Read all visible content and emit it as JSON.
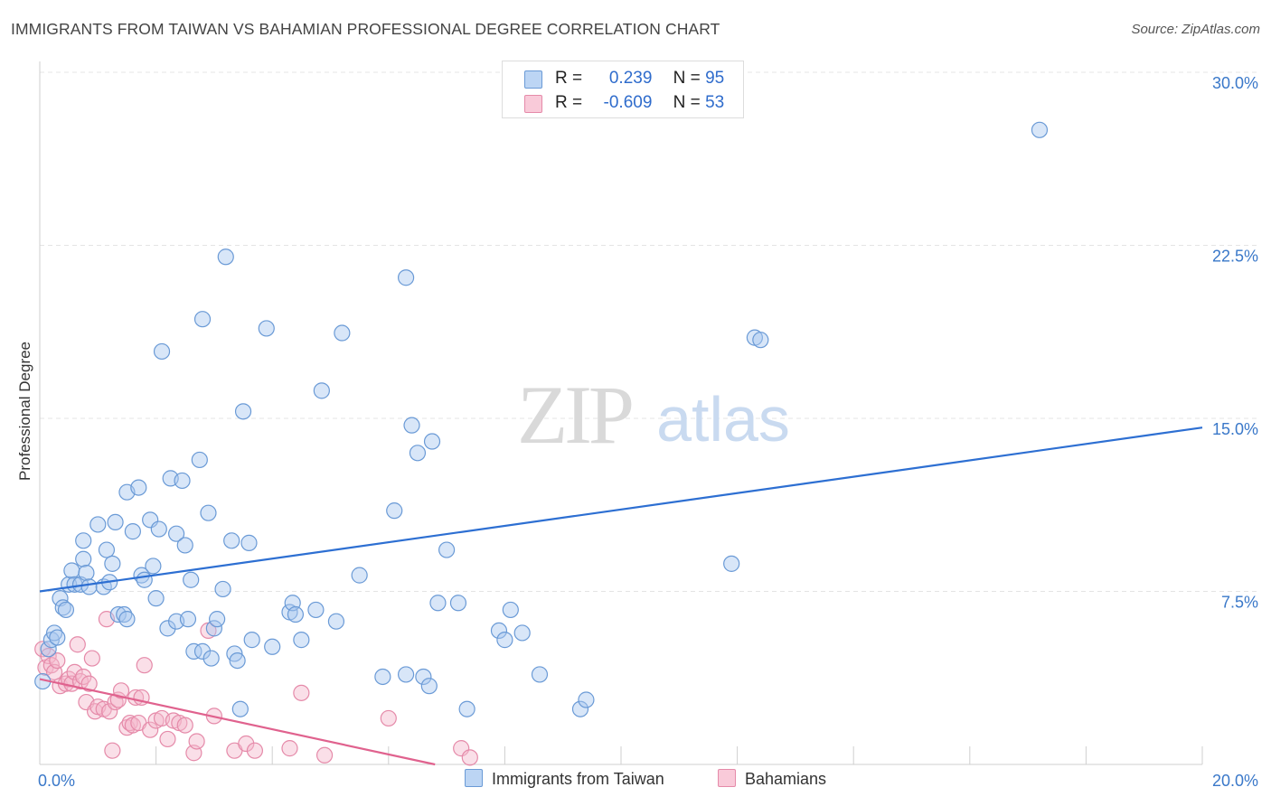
{
  "title": "IMMIGRANTS FROM TAIWAN VS BAHAMIAN PROFESSIONAL DEGREE CORRELATION CHART",
  "source": "Source: ZipAtlas.com",
  "watermark": {
    "zip": "ZIP",
    "atlas": "atlas"
  },
  "colors": {
    "blue_fill": "#a9c8f0",
    "blue_stroke": "#6a9ad6",
    "blue_line": "#2d6fd2",
    "pink_fill": "#f5b8cc",
    "pink_stroke": "#e58aa9",
    "pink_line": "#e0628e",
    "grid": "#e4e4e4",
    "tick_text": "#3a78c9"
  },
  "legend": {
    "row1": {
      "r_label": "R =",
      "r_value": "0.239",
      "n_label": "N =",
      "n_value": "95"
    },
    "row2": {
      "r_label": "R =",
      "r_value": "-0.609",
      "n_label": "N =",
      "n_value": "53"
    }
  },
  "bottom_legend": {
    "series1": "Immigrants from Taiwan",
    "series2": "Bahamians"
  },
  "chart_data": {
    "type": "scatter",
    "xlabel": "",
    "ylabel": "Professional Degree",
    "xlim": [
      0,
      20
    ],
    "ylim": [
      0,
      30
    ],
    "x_ticks": [
      {
        "value": 0,
        "label": "0.0%"
      },
      {
        "value": 20,
        "label": "20.0%"
      }
    ],
    "y_ticks": [
      {
        "value": 7.5,
        "label": "7.5%"
      },
      {
        "value": 15,
        "label": "15.0%"
      },
      {
        "value": 22.5,
        "label": "22.5%"
      },
      {
        "value": 30,
        "label": "30.0%"
      }
    ],
    "grid": true,
    "legend_position": "top-center",
    "series": [
      {
        "name": "Immigrants from Taiwan",
        "trend": {
          "x": [
            0,
            20
          ],
          "y": [
            7.5,
            14.6
          ]
        },
        "points": [
          [
            0.05,
            3.6
          ],
          [
            0.15,
            5.0
          ],
          [
            0.2,
            5.4
          ],
          [
            0.25,
            5.7
          ],
          [
            0.3,
            5.5
          ],
          [
            0.35,
            7.2
          ],
          [
            0.4,
            6.8
          ],
          [
            0.45,
            6.7
          ],
          [
            0.5,
            7.8
          ],
          [
            0.55,
            8.4
          ],
          [
            0.6,
            7.8
          ],
          [
            0.7,
            7.8
          ],
          [
            0.75,
            8.9
          ],
          [
            0.75,
            9.7
          ],
          [
            0.8,
            8.3
          ],
          [
            0.85,
            7.7
          ],
          [
            1.0,
            10.4
          ],
          [
            1.1,
            7.7
          ],
          [
            1.15,
            9.3
          ],
          [
            1.2,
            7.9
          ],
          [
            1.25,
            8.7
          ],
          [
            1.3,
            10.5
          ],
          [
            1.35,
            6.5
          ],
          [
            1.45,
            6.5
          ],
          [
            1.5,
            6.3
          ],
          [
            1.5,
            11.8
          ],
          [
            1.6,
            10.1
          ],
          [
            1.7,
            12.0
          ],
          [
            1.75,
            8.2
          ],
          [
            1.8,
            8.0
          ],
          [
            1.9,
            10.6
          ],
          [
            1.95,
            8.6
          ],
          [
            2.0,
            7.2
          ],
          [
            2.05,
            10.2
          ],
          [
            2.1,
            17.9
          ],
          [
            2.2,
            5.9
          ],
          [
            2.25,
            12.4
          ],
          [
            2.35,
            6.2
          ],
          [
            2.35,
            10.0
          ],
          [
            2.45,
            12.3
          ],
          [
            2.5,
            9.5
          ],
          [
            2.55,
            6.3
          ],
          [
            2.6,
            8.0
          ],
          [
            2.65,
            4.9
          ],
          [
            2.75,
            13.2
          ],
          [
            2.8,
            19.3
          ],
          [
            2.8,
            4.9
          ],
          [
            2.9,
            10.9
          ],
          [
            2.95,
            4.6
          ],
          [
            3.0,
            5.9
          ],
          [
            3.05,
            6.3
          ],
          [
            3.15,
            7.6
          ],
          [
            3.2,
            22.0
          ],
          [
            3.3,
            9.7
          ],
          [
            3.35,
            4.8
          ],
          [
            3.4,
            4.5
          ],
          [
            3.45,
            2.4
          ],
          [
            3.5,
            15.3
          ],
          [
            3.6,
            9.6
          ],
          [
            3.65,
            5.4
          ],
          [
            3.9,
            18.9
          ],
          [
            4.0,
            5.1
          ],
          [
            4.3,
            6.6
          ],
          [
            4.35,
            7.0
          ],
          [
            4.4,
            6.5
          ],
          [
            4.5,
            5.4
          ],
          [
            4.75,
            6.7
          ],
          [
            4.85,
            16.2
          ],
          [
            5.1,
            6.2
          ],
          [
            5.2,
            18.7
          ],
          [
            5.5,
            8.2
          ],
          [
            5.9,
            3.8
          ],
          [
            6.1,
            11.0
          ],
          [
            6.3,
            3.9
          ],
          [
            6.3,
            21.1
          ],
          [
            6.4,
            14.7
          ],
          [
            6.5,
            13.5
          ],
          [
            6.6,
            3.8
          ],
          [
            6.7,
            3.4
          ],
          [
            6.75,
            14.0
          ],
          [
            6.85,
            7.0
          ],
          [
            7.0,
            9.3
          ],
          [
            7.2,
            7.0
          ],
          [
            7.35,
            2.4
          ],
          [
            7.9,
            5.8
          ],
          [
            8.0,
            5.4
          ],
          [
            8.1,
            6.7
          ],
          [
            8.3,
            5.7
          ],
          [
            8.6,
            3.9
          ],
          [
            9.3,
            2.4
          ],
          [
            9.4,
            2.8
          ],
          [
            11.9,
            8.7
          ],
          [
            12.3,
            18.5
          ],
          [
            12.4,
            18.4
          ],
          [
            17.2,
            27.5
          ]
        ]
      },
      {
        "name": "Bahamians",
        "trend": {
          "x": [
            0,
            6.8
          ],
          "y": [
            3.7,
            0
          ]
        },
        "points": [
          [
            0.05,
            5.0
          ],
          [
            0.1,
            4.2
          ],
          [
            0.15,
            4.7
          ],
          [
            0.2,
            4.3
          ],
          [
            0.25,
            4.0
          ],
          [
            0.3,
            4.5
          ],
          [
            0.35,
            3.4
          ],
          [
            0.45,
            3.5
          ],
          [
            0.5,
            3.7
          ],
          [
            0.55,
            3.5
          ],
          [
            0.6,
            4.0
          ],
          [
            0.65,
            5.2
          ],
          [
            0.7,
            3.6
          ],
          [
            0.75,
            3.8
          ],
          [
            0.8,
            2.7
          ],
          [
            0.85,
            3.5
          ],
          [
            0.9,
            4.6
          ],
          [
            0.95,
            2.3
          ],
          [
            1.0,
            2.5
          ],
          [
            1.1,
            2.4
          ],
          [
            1.15,
            6.3
          ],
          [
            1.2,
            2.3
          ],
          [
            1.25,
            0.6
          ],
          [
            1.3,
            2.7
          ],
          [
            1.35,
            2.8
          ],
          [
            1.4,
            3.2
          ],
          [
            1.5,
            1.6
          ],
          [
            1.55,
            1.8
          ],
          [
            1.6,
            1.7
          ],
          [
            1.65,
            2.9
          ],
          [
            1.7,
            1.8
          ],
          [
            1.75,
            2.9
          ],
          [
            1.8,
            4.3
          ],
          [
            1.9,
            1.5
          ],
          [
            2.0,
            1.9
          ],
          [
            2.1,
            2.0
          ],
          [
            2.2,
            1.1
          ],
          [
            2.3,
            1.9
          ],
          [
            2.4,
            1.8
          ],
          [
            2.5,
            1.7
          ],
          [
            2.65,
            0.5
          ],
          [
            2.7,
            1.0
          ],
          [
            2.9,
            5.8
          ],
          [
            3.0,
            2.1
          ],
          [
            3.35,
            0.6
          ],
          [
            3.55,
            0.9
          ],
          [
            3.7,
            0.6
          ],
          [
            4.3,
            0.7
          ],
          [
            4.5,
            3.1
          ],
          [
            4.9,
            0.4
          ],
          [
            6.0,
            2.0
          ],
          [
            7.25,
            0.7
          ],
          [
            7.4,
            0.3
          ]
        ]
      }
    ]
  }
}
